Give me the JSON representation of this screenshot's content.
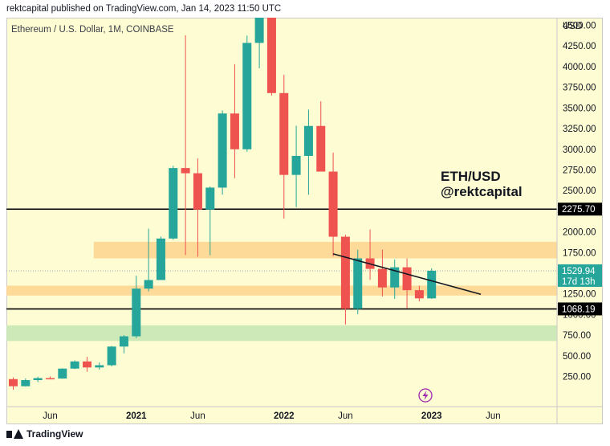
{
  "header": {
    "published": "rektcapital published on TradingView.com, Jan 14, 2023 11:50 UTC"
  },
  "footer": {
    "brand": "TradingView"
  },
  "colors": {
    "background": "#fefcd2",
    "up": "#26a69a",
    "down": "#ef5350",
    "orange_zone": "#fdd48e",
    "green_zone": "#c5e5b4",
    "level_line": "#000000"
  },
  "chart_data": {
    "type": "candlestick",
    "symbol_label": "Ethereum / U.S. Dollar, 1M, COINBASE",
    "currency": "USD",
    "annotation": "ETH/USD\n@rektcapital",
    "y_ticks": [
      250,
      500,
      750,
      1000,
      1250,
      1500,
      1750,
      2000,
      2250,
      2500,
      2750,
      3000,
      3250,
      3500,
      3750,
      4000,
      4250,
      4500
    ],
    "y_tick_labels": [
      "250.00",
      "500.00",
      "750.00",
      "1000.00",
      "1250.00",
      "1500.00",
      "1750.00",
      "2000.00",
      "2250.00",
      "2500.00",
      "2750.00",
      "3000.00",
      "3250.00",
      "3500.00",
      "3750.00",
      "4000.00",
      "4250.00",
      "4500.00"
    ],
    "x_ticks": [
      {
        "label": "Jun",
        "date": "2020-06"
      },
      {
        "label": "2021",
        "date": "2021-01"
      },
      {
        "label": "Jun",
        "date": "2021-06"
      },
      {
        "label": "2022",
        "date": "2022-01"
      },
      {
        "label": "Jun",
        "date": "2022-06"
      },
      {
        "label": "2023",
        "date": "2023-01"
      },
      {
        "label": "Jun",
        "date": "2023-06"
      }
    ],
    "candles": [
      {
        "date": "2020-03",
        "open": 219,
        "high": 240,
        "low": 90,
        "close": 133
      },
      {
        "date": "2020-04",
        "open": 133,
        "high": 228,
        "low": 130,
        "close": 207
      },
      {
        "date": "2020-05",
        "open": 207,
        "high": 248,
        "low": 182,
        "close": 231
      },
      {
        "date": "2020-06",
        "open": 231,
        "high": 252,
        "low": 215,
        "close": 226
      },
      {
        "date": "2020-07",
        "open": 226,
        "high": 350,
        "low": 224,
        "close": 346
      },
      {
        "date": "2020-08",
        "open": 346,
        "high": 445,
        "low": 340,
        "close": 433
      },
      {
        "date": "2020-09",
        "open": 433,
        "high": 489,
        "low": 308,
        "close": 360
      },
      {
        "date": "2020-10",
        "open": 360,
        "high": 420,
        "low": 334,
        "close": 387
      },
      {
        "date": "2020-11",
        "open": 387,
        "high": 620,
        "low": 373,
        "close": 613
      },
      {
        "date": "2020-12",
        "open": 613,
        "high": 752,
        "low": 532,
        "close": 737
      },
      {
        "date": "2021-01",
        "open": 737,
        "high": 1470,
        "low": 715,
        "close": 1314
      },
      {
        "date": "2021-02",
        "open": 1314,
        "high": 2040,
        "low": 1280,
        "close": 1418
      },
      {
        "date": "2021-03",
        "open": 1418,
        "high": 1945,
        "low": 1420,
        "close": 1920
      },
      {
        "date": "2021-04",
        "open": 1920,
        "high": 2800,
        "low": 1905,
        "close": 2773
      },
      {
        "date": "2021-05",
        "open": 2773,
        "high": 4380,
        "low": 1720,
        "close": 2710
      },
      {
        "date": "2021-06",
        "open": 2710,
        "high": 2890,
        "low": 1700,
        "close": 2270
      },
      {
        "date": "2021-07",
        "open": 2270,
        "high": 2550,
        "low": 1718,
        "close": 2536
      },
      {
        "date": "2021-08",
        "open": 2536,
        "high": 3470,
        "low": 2450,
        "close": 3433
      },
      {
        "date": "2021-09",
        "open": 3433,
        "high": 4030,
        "low": 2650,
        "close": 3000
      },
      {
        "date": "2021-10",
        "open": 3000,
        "high": 4375,
        "low": 2970,
        "close": 4287
      },
      {
        "date": "2021-11",
        "open": 4287,
        "high": 4868,
        "low": 3980,
        "close": 4632
      },
      {
        "date": "2021-12",
        "open": 4632,
        "high": 4780,
        "low": 3650,
        "close": 3680
      },
      {
        "date": "2022-01",
        "open": 3680,
        "high": 3900,
        "low": 2160,
        "close": 2690
      },
      {
        "date": "2022-02",
        "open": 2690,
        "high": 3285,
        "low": 2300,
        "close": 2920
      },
      {
        "date": "2022-03",
        "open": 2920,
        "high": 3480,
        "low": 2450,
        "close": 3282
      },
      {
        "date": "2022-04",
        "open": 3282,
        "high": 3580,
        "low": 2760,
        "close": 2730
      },
      {
        "date": "2022-05",
        "open": 2730,
        "high": 2960,
        "low": 1705,
        "close": 1942
      },
      {
        "date": "2022-06",
        "open": 1942,
        "high": 1965,
        "low": 881,
        "close": 1070
      },
      {
        "date": "2022-07",
        "open": 1070,
        "high": 1785,
        "low": 1005,
        "close": 1680
      },
      {
        "date": "2022-08",
        "open": 1680,
        "high": 2030,
        "low": 1420,
        "close": 1553
      },
      {
        "date": "2022-09",
        "open": 1553,
        "high": 1785,
        "low": 1220,
        "close": 1328
      },
      {
        "date": "2022-10",
        "open": 1328,
        "high": 1665,
        "low": 1190,
        "close": 1572
      },
      {
        "date": "2022-11",
        "open": 1572,
        "high": 1680,
        "low": 1075,
        "close": 1295
      },
      {
        "date": "2022-12",
        "open": 1295,
        "high": 1350,
        "low": 1160,
        "close": 1196
      },
      {
        "date": "2023-01",
        "open": 1196,
        "high": 1560,
        "low": 1190,
        "close": 1530
      }
    ],
    "horizontal_levels": [
      {
        "value": 2275.7,
        "label": "2275.70"
      },
      {
        "value": 1068.19,
        "label": "1068.19"
      }
    ],
    "current_price": {
      "value": 1529.94,
      "label": "1529.94",
      "countdown": "17d 13h"
    },
    "zones": [
      {
        "from": 1680,
        "to": 1880,
        "color": "#fdd48e",
        "start": "2020-10"
      },
      {
        "from": 1230,
        "to": 1350,
        "color": "#fdd48e",
        "start": "2020-03"
      },
      {
        "from": 680,
        "to": 870,
        "color": "#c5e5b4",
        "start": "2020-03"
      }
    ],
    "trendline": {
      "start": {
        "date": "2022-05",
        "price": 1735
      },
      "end": {
        "date": "2023-05",
        "price": 1245
      }
    },
    "ylim": [
      0,
      4600
    ],
    "grid": false
  }
}
